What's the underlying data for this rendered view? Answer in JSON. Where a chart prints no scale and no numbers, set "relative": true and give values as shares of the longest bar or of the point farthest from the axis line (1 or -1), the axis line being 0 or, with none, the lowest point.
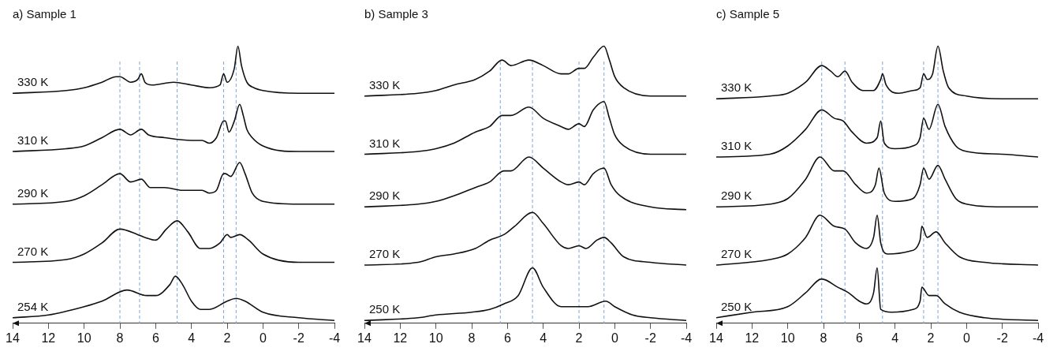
{
  "chart_data": [
    {
      "type": "line",
      "title": "a) Sample 1",
      "relative": true,
      "xlim": [
        14,
        -4
      ],
      "xticks": [
        14,
        12,
        10,
        8,
        6,
        4,
        2,
        0,
        -2,
        -4
      ],
      "line_style": "solid",
      "series": [
        {
          "name": "330 K",
          "color": "#111111",
          "x": [
            14,
            11,
            10,
            9,
            8.2,
            8,
            7.4,
            7,
            6.8,
            6.6,
            6.2,
            5,
            4,
            3,
            2.4,
            2.2,
            2,
            1.6,
            1.4,
            1.2,
            0.9,
            0.5,
            0,
            -2,
            -4
          ],
          "values": [
            0.83,
            0.84,
            0.85,
            0.87,
            0.89,
            0.89,
            0.87,
            0.88,
            0.9,
            0.87,
            0.86,
            0.87,
            0.86,
            0.85,
            0.86,
            0.9,
            0.87,
            0.92,
            1.0,
            0.93,
            0.87,
            0.85,
            0.84,
            0.83,
            0.83
          ]
        },
        {
          "name": "310 K",
          "color": "#111111",
          "x": [
            14,
            11,
            10,
            9,
            8,
            7.4,
            6.8,
            6.4,
            5.5,
            4,
            3.4,
            3,
            2.6,
            2.2,
            2.1,
            1.9,
            1.6,
            1.3,
            1.1,
            0.9,
            0.6,
            0,
            -2,
            -4
          ],
          "values": [
            0.62,
            0.63,
            0.64,
            0.67,
            0.7,
            0.68,
            0.7,
            0.68,
            0.67,
            0.66,
            0.66,
            0.65,
            0.67,
            0.73,
            0.73,
            0.69,
            0.73,
            0.79,
            0.75,
            0.7,
            0.67,
            0.64,
            0.62,
            0.62
          ]
        },
        {
          "name": "290 K",
          "color": "#111111",
          "x": [
            14,
            11,
            10,
            9,
            8,
            7.4,
            6.8,
            6.3,
            5.5,
            4.5,
            4,
            3.4,
            3,
            2.6,
            2.2,
            2.1,
            1.8,
            1.3,
            1,
            0.6,
            0,
            -2,
            -4
          ],
          "values": [
            0.43,
            0.44,
            0.46,
            0.5,
            0.54,
            0.51,
            0.52,
            0.49,
            0.49,
            0.48,
            0.48,
            0.48,
            0.47,
            0.48,
            0.54,
            0.54,
            0.53,
            0.58,
            0.54,
            0.47,
            0.44,
            0.43,
            0.43
          ]
        },
        {
          "name": "270 K",
          "color": "#111111",
          "x": [
            14,
            11,
            10,
            9,
            8,
            7,
            6.6,
            6,
            5.4,
            4.8,
            4.2,
            3.5,
            3,
            2.4,
            2,
            1.8,
            1.3,
            0.8,
            0,
            -2,
            -4
          ],
          "values": [
            0.22,
            0.23,
            0.25,
            0.29,
            0.34,
            0.32,
            0.31,
            0.3,
            0.34,
            0.37,
            0.33,
            0.27,
            0.27,
            0.29,
            0.32,
            0.31,
            0.32,
            0.3,
            0.25,
            0.22,
            0.22
          ]
        },
        {
          "name": "254 K",
          "color": "#111111",
          "x": [
            14,
            12,
            10,
            9,
            7.6,
            6.5,
            6,
            5.2,
            4.9,
            4.5,
            4,
            3.5,
            3,
            2,
            1.5,
            1,
            0,
            -2,
            -4
          ],
          "values": [
            0.02,
            0.03,
            0.06,
            0.08,
            0.12,
            0.1,
            0.1,
            0.14,
            0.17,
            0.14,
            0.08,
            0.05,
            0.05,
            0.08,
            0.09,
            0.08,
            0.04,
            0.02,
            0.01
          ]
        }
      ],
      "ref_lines": [
        {
          "axis": "x",
          "value": 8,
          "color": "#7ea6d8",
          "line_style": "dashed"
        },
        {
          "axis": "x",
          "value": 6.9,
          "color": "#7ea6d8",
          "line_style": "dashed"
        },
        {
          "axis": "x",
          "value": 4.8,
          "color": "#7ea6d8",
          "line_style": "dashed"
        },
        {
          "axis": "x",
          "value": 2.2,
          "color": "#7ea6d8",
          "line_style": "dashed"
        },
        {
          "axis": "x",
          "value": 1.5,
          "color": "#7ea6d8",
          "line_style": "dashed"
        }
      ]
    },
    {
      "type": "line",
      "title": "b) Sample 3",
      "relative": true,
      "xlim": [
        14,
        -4
      ],
      "xticks": [
        14,
        12,
        10,
        8,
        6,
        4,
        2,
        0,
        -2,
        -4
      ],
      "line_style": "solid",
      "series": [
        {
          "name": "330 K",
          "color": "#111111",
          "x": [
            14,
            11,
            10,
            9,
            7.8,
            7,
            6.3,
            5.8,
            4.8,
            4,
            3,
            2.6,
            2,
            1.7,
            1.2,
            0.6,
            0.3,
            0,
            -0.5,
            -2,
            -4
          ],
          "values": [
            0.82,
            0.83,
            0.84,
            0.86,
            0.88,
            0.91,
            0.95,
            0.93,
            0.95,
            0.93,
            0.9,
            0.9,
            0.92,
            0.92,
            0.96,
            1.0,
            0.95,
            0.89,
            0.85,
            0.82,
            0.82
          ]
        },
        {
          "name": "310 K",
          "color": "#111111",
          "x": [
            14,
            11,
            10,
            9,
            7.8,
            7,
            6.3,
            5.8,
            4.8,
            4,
            3,
            2.6,
            2,
            1.7,
            1.2,
            0.6,
            0.3,
            0,
            -0.5,
            -2,
            -4
          ],
          "values": [
            0.61,
            0.62,
            0.63,
            0.65,
            0.69,
            0.71,
            0.75,
            0.75,
            0.78,
            0.74,
            0.71,
            0.7,
            0.72,
            0.71,
            0.77,
            0.8,
            0.74,
            0.68,
            0.64,
            0.61,
            0.61
          ]
        },
        {
          "name": "290 K",
          "color": "#111111",
          "x": [
            14,
            11,
            10,
            9,
            7.8,
            7,
            6.2,
            5.8,
            4.8,
            4,
            3,
            2.6,
            2,
            1.7,
            1.2,
            0.6,
            0.2,
            -0.3,
            -2,
            -4
          ],
          "values": [
            0.42,
            0.43,
            0.44,
            0.46,
            0.49,
            0.51,
            0.55,
            0.55,
            0.6,
            0.56,
            0.51,
            0.5,
            0.51,
            0.5,
            0.54,
            0.56,
            0.5,
            0.46,
            0.42,
            0.41
          ]
        },
        {
          "name": "270 K",
          "color": "#111111",
          "x": [
            14,
            11,
            10,
            9,
            7.8,
            7,
            6.2,
            5.6,
            4.6,
            4,
            3,
            2.6,
            2,
            1.6,
            1,
            0.6,
            0.2,
            -0.5,
            -2,
            -4
          ],
          "values": [
            0.21,
            0.22,
            0.24,
            0.25,
            0.27,
            0.3,
            0.32,
            0.35,
            0.4,
            0.36,
            0.28,
            0.27,
            0.28,
            0.27,
            0.3,
            0.31,
            0.29,
            0.24,
            0.22,
            0.21
          ]
        },
        {
          "name": "250 K",
          "color": "#111111",
          "x": [
            14,
            11,
            10,
            8,
            7,
            6.2,
            5.4,
            4.6,
            4,
            3,
            2.4,
            1.5,
            0.5,
            0,
            -1,
            -2,
            -4
          ],
          "values": [
            0.01,
            0.02,
            0.03,
            0.04,
            0.05,
            0.07,
            0.1,
            0.2,
            0.13,
            0.06,
            0.06,
            0.06,
            0.08,
            0.06,
            0.03,
            0.02,
            0.01
          ]
        }
      ],
      "ref_lines": [
        {
          "axis": "x",
          "value": 6.4,
          "color": "#7ea6d8",
          "line_style": "dashed"
        },
        {
          "axis": "x",
          "value": 4.6,
          "color": "#7ea6d8",
          "line_style": "dashed"
        },
        {
          "axis": "x",
          "value": 2,
          "color": "#7ea6d8",
          "line_style": "dashed"
        },
        {
          "axis": "x",
          "value": 0.6,
          "color": "#7ea6d8",
          "line_style": "dashed"
        }
      ]
    },
    {
      "type": "line",
      "title": "c) Sample 5",
      "relative": true,
      "xlim": [
        14,
        -4
      ],
      "xticks": [
        14,
        12,
        10,
        8,
        6,
        4,
        2,
        0,
        -2,
        -4
      ],
      "line_style": "solid",
      "series": [
        {
          "name": "330 K",
          "color": "#111111",
          "x": [
            14,
            11,
            10,
            9,
            8.1,
            7.6,
            7.2,
            6.8,
            6.4,
            5.8,
            5.2,
            4.8,
            4.7,
            4.5,
            3.8,
            3,
            2.6,
            2.4,
            2.2,
            1.9,
            1.6,
            1.3,
            1,
            0,
            -2,
            -4
          ],
          "values": [
            0.81,
            0.82,
            0.83,
            0.87,
            0.93,
            0.91,
            0.89,
            0.91,
            0.87,
            0.84,
            0.84,
            0.88,
            0.9,
            0.86,
            0.83,
            0.84,
            0.85,
            0.9,
            0.88,
            0.9,
            1.0,
            0.91,
            0.85,
            0.82,
            0.81,
            0.81
          ]
        },
        {
          "name": "310 K",
          "color": "#111111",
          "x": [
            14,
            11,
            10,
            9,
            8.1,
            7.4,
            6.9,
            6.4,
            5.6,
            5,
            4.8,
            4.6,
            4,
            3,
            2.6,
            2.4,
            2.1,
            1.6,
            1.2,
            0.6,
            0,
            -2,
            -4
          ],
          "values": [
            0.6,
            0.61,
            0.64,
            0.7,
            0.77,
            0.74,
            0.73,
            0.69,
            0.65,
            0.67,
            0.73,
            0.65,
            0.63,
            0.64,
            0.67,
            0.74,
            0.7,
            0.79,
            0.71,
            0.64,
            0.62,
            0.61,
            0.6
          ]
        },
        {
          "name": "290 K",
          "color": "#111111",
          "x": [
            14,
            11,
            10,
            9,
            8.2,
            7.4,
            6.9,
            6.2,
            5.6,
            5.1,
            4.9,
            4.6,
            4,
            3,
            2.6,
            2.4,
            2.1,
            1.6,
            1.2,
            0.6,
            0,
            -2,
            -4
          ],
          "values": [
            0.42,
            0.43,
            0.45,
            0.52,
            0.6,
            0.55,
            0.55,
            0.5,
            0.47,
            0.5,
            0.56,
            0.47,
            0.44,
            0.45,
            0.5,
            0.56,
            0.52,
            0.57,
            0.52,
            0.45,
            0.43,
            0.42,
            0.42
          ]
        },
        {
          "name": "270 K",
          "color": "#111111",
          "x": [
            14,
            11,
            10,
            9,
            8.2,
            7.4,
            6.8,
            6.2,
            5.6,
            5.2,
            5,
            4.8,
            4.4,
            3.2,
            2.6,
            2.5,
            2.2,
            1.7,
            1.2,
            0.4,
            -1,
            -4
          ],
          "values": [
            0.21,
            0.23,
            0.25,
            0.31,
            0.39,
            0.35,
            0.34,
            0.29,
            0.27,
            0.31,
            0.39,
            0.29,
            0.25,
            0.26,
            0.3,
            0.35,
            0.31,
            0.33,
            0.29,
            0.24,
            0.22,
            0.21
          ]
        },
        {
          "name": "250 K",
          "color": "#111111",
          "x": [
            14,
            12,
            10,
            9,
            8.1,
            7.2,
            6.6,
            6,
            5.6,
            5.2,
            5,
            4.8,
            4.2,
            3,
            2.6,
            2.5,
            2.1,
            1.7,
            1.2,
            0.4,
            -1,
            -4
          ],
          "values": [
            0.02,
            0.04,
            0.06,
            0.11,
            0.16,
            0.13,
            0.11,
            0.08,
            0.07,
            0.11,
            0.2,
            0.05,
            0.04,
            0.05,
            0.08,
            0.13,
            0.1,
            0.1,
            0.07,
            0.04,
            0.02,
            0.01
          ]
        }
      ],
      "ref_lines": [
        {
          "axis": "x",
          "value": 8.1,
          "color": "#7ea6d8",
          "line_style": "dashed"
        },
        {
          "axis": "x",
          "value": 6.8,
          "color": "#7ea6d8",
          "line_style": "dashed"
        },
        {
          "axis": "x",
          "value": 4.7,
          "color": "#7ea6d8",
          "line_style": "dashed"
        },
        {
          "axis": "x",
          "value": 2.4,
          "color": "#7ea6d8",
          "line_style": "dashed"
        },
        {
          "axis": "x",
          "value": 1.6,
          "color": "#7ea6d8",
          "line_style": "dashed"
        }
      ]
    }
  ]
}
